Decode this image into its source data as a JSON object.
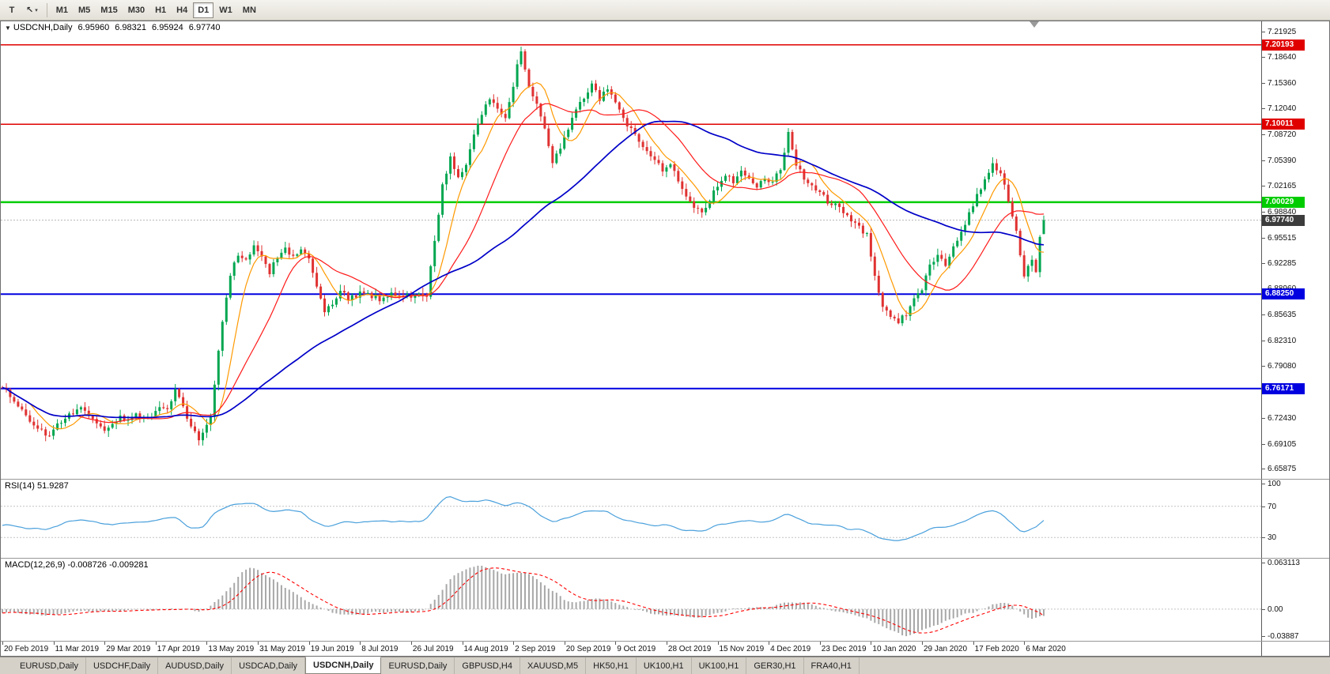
{
  "toolbar": {
    "tool_buttons": [
      {
        "name": "text-tool",
        "glyph": "T"
      },
      {
        "name": "cursor-tool",
        "glyph": "↖",
        "dropdown": "▾"
      }
    ],
    "timeframes": [
      "M1",
      "M5",
      "M15",
      "M30",
      "H1",
      "H4",
      "D1",
      "W1",
      "MN"
    ],
    "active_timeframe": "D1"
  },
  "chart_header": {
    "collapse_icon": "▼",
    "symbol": "USDCNH,Daily",
    "open": "6.95960",
    "high": "6.98321",
    "low": "6.95924",
    "close": "6.97740"
  },
  "indicators": {
    "rsi_label": "RSI(14) 51.9287",
    "macd_label": "MACD(12,26,9) -0.008726 -0.009281"
  },
  "axes": {
    "price_ticks": [
      "7.21925",
      "7.18640",
      "7.15360",
      "7.12040",
      "7.08720",
      "7.05390",
      "7.02165",
      "6.98840",
      "6.95515",
      "6.92285",
      "6.88960",
      "6.85635",
      "6.82310",
      "6.79080",
      "6.75755",
      "6.72430",
      "6.69105",
      "6.65875"
    ],
    "rsi_ticks": [
      "100",
      "70",
      "30"
    ],
    "macd_ticks": [
      "0.063113",
      "0.00",
      "-0.03887"
    ],
    "dates": [
      "20 Feb 2019",
      "11 Mar 2019",
      "29 Mar 2019",
      "17 Apr 2019",
      "13 May 2019",
      "31 May 2019",
      "19 Jun 2019",
      "8 Jul 2019",
      "26 Jul 2019",
      "14 Aug 2019",
      "2 Sep 2019",
      "20 Sep 2019",
      "9 Oct 2019",
      "28 Oct 2019",
      "15 Nov 2019",
      "4 Dec 2019",
      "23 Dec 2019",
      "10 Jan 2020",
      "29 Jan 2020",
      "17 Feb 2020",
      "6 Mar 2020"
    ]
  },
  "levels": [
    {
      "value": 7.20193,
      "label": "7.20193",
      "color": "#e00000",
      "width": 1.5
    },
    {
      "value": 7.10011,
      "label": "7.10011",
      "color": "#e00000",
      "width": 1.5
    },
    {
      "value": 7.00029,
      "label": "7.00029",
      "color": "#00cc00",
      "width": 2.5
    },
    {
      "value": 6.8825,
      "label": "6.88250",
      "color": "#0000e0",
      "width": 2
    },
    {
      "value": 6.76171,
      "label": "6.76171",
      "color": "#0000e0",
      "width": 2
    }
  ],
  "current_price": {
    "value": 6.9774,
    "label": "6.97740",
    "badge_bg": "#3c3c3c"
  },
  "tabs": [
    {
      "label": "EURUSD,Daily"
    },
    {
      "label": "USDCHF,Daily"
    },
    {
      "label": "AUDUSD,Daily"
    },
    {
      "label": "USDCAD,Daily"
    },
    {
      "label": "USDCNH,Daily",
      "active": true
    },
    {
      "label": "EURUSD,Daily"
    },
    {
      "label": "GBPUSD,H4"
    },
    {
      "label": "XAUUSD,M5"
    },
    {
      "label": "HK50,H1"
    },
    {
      "label": "UK100,H1"
    },
    {
      "label": "UK100,H1"
    },
    {
      "label": "GER30,H1"
    },
    {
      "label": "FRA40,H1"
    }
  ],
  "chart_data": {
    "type": "candlestick",
    "symbol": "USDCNH",
    "timeframe": "Daily",
    "bars": 266,
    "bar_step": 4.97,
    "ohlc_current": {
      "open": 6.9596,
      "high": 6.98321,
      "low": 6.95924,
      "close": 6.9774
    },
    "price_range": {
      "max": 7.232,
      "min": 6.646
    },
    "close_path_anchors": [
      [
        0,
        6.762
      ],
      [
        3,
        6.748
      ],
      [
        6,
        6.728
      ],
      [
        9,
        6.71
      ],
      [
        12,
        6.702
      ],
      [
        14,
        6.715
      ],
      [
        16,
        6.722
      ],
      [
        18,
        6.732
      ],
      [
        20,
        6.738
      ],
      [
        22,
        6.728
      ],
      [
        24,
        6.718
      ],
      [
        26,
        6.71
      ],
      [
        28,
        6.718
      ],
      [
        30,
        6.725
      ],
      [
        32,
        6.72
      ],
      [
        34,
        6.728
      ],
      [
        36,
        6.722
      ],
      [
        38,
        6.728
      ],
      [
        40,
        6.735
      ],
      [
        42,
        6.732
      ],
      [
        44,
        6.762
      ],
      [
        46,
        6.738
      ],
      [
        48,
        6.712
      ],
      [
        50,
        6.698
      ],
      [
        52,
        6.712
      ],
      [
        53,
        6.728
      ],
      [
        54,
        6.768
      ],
      [
        55,
        6.808
      ],
      [
        56,
        6.845
      ],
      [
        57,
        6.878
      ],
      [
        58,
        6.905
      ],
      [
        59,
        6.922
      ],
      [
        60,
        6.935
      ],
      [
        62,
        6.925
      ],
      [
        64,
        6.945
      ],
      [
        66,
        6.928
      ],
      [
        68,
        6.91
      ],
      [
        70,
        6.93
      ],
      [
        72,
        6.942
      ],
      [
        74,
        6.93
      ],
      [
        76,
        6.94
      ],
      [
        78,
        6.925
      ],
      [
        80,
        6.892
      ],
      [
        82,
        6.858
      ],
      [
        84,
        6.872
      ],
      [
        86,
        6.885
      ],
      [
        88,
        6.878
      ],
      [
        92,
        6.884
      ],
      [
        96,
        6.877
      ],
      [
        100,
        6.883
      ],
      [
        104,
        6.878
      ],
      [
        106,
        6.884
      ],
      [
        108,
        6.882
      ],
      [
        110,
        6.95
      ],
      [
        112,
        7.022
      ],
      [
        114,
        7.058
      ],
      [
        116,
        7.032
      ],
      [
        118,
        7.048
      ],
      [
        120,
        7.088
      ],
      [
        122,
        7.112
      ],
      [
        124,
        7.135
      ],
      [
        126,
        7.118
      ],
      [
        128,
        7.105
      ],
      [
        130,
        7.148
      ],
      [
        131,
        7.178
      ],
      [
        132,
        7.192
      ],
      [
        133,
        7.17
      ],
      [
        134,
        7.15
      ],
      [
        136,
        7.128
      ],
      [
        138,
        7.095
      ],
      [
        140,
        7.048
      ],
      [
        142,
        7.072
      ],
      [
        144,
        7.095
      ],
      [
        146,
        7.118
      ],
      [
        148,
        7.135
      ],
      [
        150,
        7.15
      ],
      [
        152,
        7.132
      ],
      [
        154,
        7.148
      ],
      [
        156,
        7.128
      ],
      [
        158,
        7.108
      ],
      [
        160,
        7.092
      ],
      [
        162,
        7.078
      ],
      [
        164,
        7.068
      ],
      [
        166,
        7.055
      ],
      [
        168,
        7.042
      ],
      [
        170,
        7.052
      ],
      [
        172,
        7.028
      ],
      [
        174,
        7.008
      ],
      [
        176,
        6.992
      ],
      [
        178,
        6.986
      ],
      [
        180,
        7.005
      ],
      [
        182,
        7.022
      ],
      [
        184,
        7.035
      ],
      [
        186,
        7.028
      ],
      [
        188,
        7.04
      ],
      [
        190,
        7.03
      ],
      [
        192,
        7.022
      ],
      [
        194,
        7.03
      ],
      [
        196,
        7.028
      ],
      [
        198,
        7.042
      ],
      [
        200,
        7.088
      ],
      [
        202,
        7.048
      ],
      [
        204,
        7.03
      ],
      [
        206,
        7.022
      ],
      [
        208,
        7.012
      ],
      [
        210,
        7.002
      ],
      [
        212,
        6.998
      ],
      [
        214,
        6.988
      ],
      [
        216,
        6.978
      ],
      [
        218,
        6.968
      ],
      [
        220,
        6.958
      ],
      [
        222,
        6.905
      ],
      [
        224,
        6.868
      ],
      [
        226,
        6.852
      ],
      [
        228,
        6.846
      ],
      [
        230,
        6.858
      ],
      [
        232,
        6.878
      ],
      [
        234,
        6.888
      ],
      [
        236,
        6.918
      ],
      [
        238,
        6.932
      ],
      [
        240,
        6.922
      ],
      [
        242,
        6.945
      ],
      [
        244,
        6.962
      ],
      [
        246,
        6.985
      ],
      [
        248,
        7.008
      ],
      [
        250,
        7.028
      ],
      [
        252,
        7.048
      ],
      [
        254,
        7.04
      ],
      [
        256,
        7.0
      ],
      [
        258,
        6.962
      ],
      [
        260,
        6.908
      ],
      [
        261,
        6.922
      ],
      [
        262,
        6.925
      ],
      [
        263,
        6.912
      ],
      [
        264,
        6.958
      ],
      [
        265,
        6.977
      ]
    ],
    "moving_averages": [
      {
        "name": "fast",
        "period": 8,
        "color": "#ff9900",
        "width": 1.2
      },
      {
        "name": "mid",
        "period": 20,
        "color": "#ff1a1a",
        "width": 1.2
      },
      {
        "name": "slow",
        "period": 55,
        "color": "#0000c8",
        "width": 1.7
      }
    ],
    "rsi": {
      "period": 14,
      "current": 51.9287,
      "range": {
        "max": 104,
        "min": 4
      },
      "levels": [
        70,
        30
      ],
      "anchors": [
        [
          0,
          47
        ],
        [
          6,
          43
        ],
        [
          12,
          41
        ],
        [
          16,
          50
        ],
        [
          20,
          53
        ],
        [
          24,
          48
        ],
        [
          28,
          46
        ],
        [
          32,
          50
        ],
        [
          36,
          49
        ],
        [
          40,
          52
        ],
        [
          44,
          57
        ],
        [
          48,
          42
        ],
        [
          51,
          40
        ],
        [
          54,
          62
        ],
        [
          58,
          71
        ],
        [
          62,
          74
        ],
        [
          64,
          76
        ],
        [
          68,
          62
        ],
        [
          72,
          66
        ],
        [
          76,
          63
        ],
        [
          80,
          46
        ],
        [
          84,
          45
        ],
        [
          88,
          51
        ],
        [
          92,
          50
        ],
        [
          96,
          49
        ],
        [
          100,
          51
        ],
        [
          104,
          49
        ],
        [
          108,
          53
        ],
        [
          110,
          68
        ],
        [
          112,
          80
        ],
        [
          114,
          85
        ],
        [
          116,
          78
        ],
        [
          118,
          73
        ],
        [
          120,
          77
        ],
        [
          124,
          78
        ],
        [
          128,
          68
        ],
        [
          131,
          76
        ],
        [
          133,
          70
        ],
        [
          136,
          62
        ],
        [
          140,
          48
        ],
        [
          142,
          52
        ],
        [
          146,
          60
        ],
        [
          150,
          65
        ],
        [
          152,
          60
        ],
        [
          154,
          63
        ],
        [
          158,
          54
        ],
        [
          162,
          49
        ],
        [
          166,
          45
        ],
        [
          170,
          47
        ],
        [
          174,
          40
        ],
        [
          178,
          36
        ],
        [
          182,
          46
        ],
        [
          186,
          49
        ],
        [
          188,
          53
        ],
        [
          192,
          50
        ],
        [
          196,
          51
        ],
        [
          200,
          60
        ],
        [
          204,
          50
        ],
        [
          208,
          46
        ],
        [
          212,
          44
        ],
        [
          216,
          41
        ],
        [
          220,
          38
        ],
        [
          224,
          29
        ],
        [
          228,
          26
        ],
        [
          232,
          31
        ],
        [
          236,
          42
        ],
        [
          240,
          43
        ],
        [
          244,
          50
        ],
        [
          248,
          60
        ],
        [
          252,
          66
        ],
        [
          254,
          63
        ],
        [
          256,
          52
        ],
        [
          258,
          42
        ],
        [
          260,
          33
        ],
        [
          262,
          40
        ],
        [
          264,
          47
        ],
        [
          265,
          51.93
        ]
      ]
    },
    "macd": {
      "params": "12,26,9",
      "current": [
        -0.008726,
        -0.009281
      ],
      "range": {
        "max": 0.0645,
        "min": -0.0405
      },
      "anchors": [
        [
          0,
          -0.003
        ],
        [
          6,
          -0.006
        ],
        [
          12,
          -0.008
        ],
        [
          18,
          -0.003
        ],
        [
          24,
          -0.002
        ],
        [
          30,
          -0.003
        ],
        [
          36,
          -0.001
        ],
        [
          42,
          0.001
        ],
        [
          46,
          0.0
        ],
        [
          50,
          -0.004
        ],
        [
          54,
          0.008
        ],
        [
          58,
          0.028
        ],
        [
          61,
          0.047
        ],
        [
          63,
          0.053
        ],
        [
          65,
          0.05
        ],
        [
          68,
          0.04
        ],
        [
          72,
          0.026
        ],
        [
          76,
          0.015
        ],
        [
          80,
          0.004
        ],
        [
          84,
          -0.006
        ],
        [
          88,
          -0.008
        ],
        [
          92,
          -0.005
        ],
        [
          96,
          -0.004
        ],
        [
          100,
          -0.004
        ],
        [
          104,
          -0.005
        ],
        [
          108,
          -0.001
        ],
        [
          111,
          0.018
        ],
        [
          114,
          0.04
        ],
        [
          118,
          0.05
        ],
        [
          121,
          0.055
        ],
        [
          124,
          0.053
        ],
        [
          127,
          0.044
        ],
        [
          130,
          0.046
        ],
        [
          133,
          0.048
        ],
        [
          136,
          0.04
        ],
        [
          140,
          0.024
        ],
        [
          143,
          0.012
        ],
        [
          146,
          0.008
        ],
        [
          149,
          0.012
        ],
        [
          152,
          0.013
        ],
        [
          155,
          0.01
        ],
        [
          158,
          0.004
        ],
        [
          162,
          -0.002
        ],
        [
          166,
          -0.007
        ],
        [
          170,
          -0.008
        ],
        [
          174,
          -0.01
        ],
        [
          178,
          -0.011
        ],
        [
          182,
          -0.006
        ],
        [
          186,
          0.0
        ],
        [
          190,
          0.002
        ],
        [
          194,
          0.002
        ],
        [
          198,
          0.006
        ],
        [
          201,
          0.01
        ],
        [
          204,
          0.007
        ],
        [
          208,
          0.002
        ],
        [
          212,
          -0.003
        ],
        [
          216,
          -0.007
        ],
        [
          220,
          -0.012
        ],
        [
          224,
          -0.022
        ],
        [
          227,
          -0.03
        ],
        [
          230,
          -0.034
        ],
        [
          233,
          -0.03
        ],
        [
          236,
          -0.024
        ],
        [
          240,
          -0.016
        ],
        [
          244,
          -0.009
        ],
        [
          248,
          -0.002
        ],
        [
          252,
          0.006
        ],
        [
          255,
          0.009
        ],
        [
          258,
          0.002
        ],
        [
          260,
          -0.008
        ],
        [
          262,
          -0.012
        ],
        [
          264,
          -0.01
        ],
        [
          265,
          -0.0087
        ]
      ]
    },
    "colors": {
      "up": "#00a650",
      "down": "#e03232",
      "rsi_line": "#4aa0dc",
      "macd_hist": "#a8a8a8",
      "macd_signal": "#ff0000"
    }
  }
}
